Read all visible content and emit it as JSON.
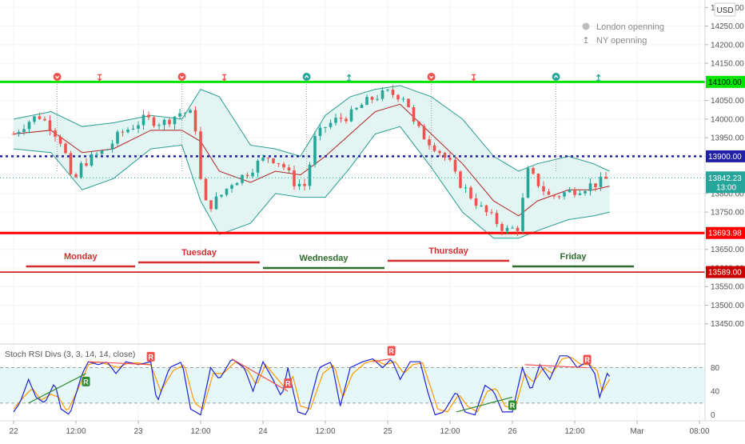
{
  "header": {
    "currency": "USD"
  },
  "legend": {
    "items": [
      {
        "icon": "london-open-icon",
        "label": "London openning"
      },
      {
        "icon": "ny-open-icon",
        "label": "NY openning"
      }
    ]
  },
  "colors": {
    "resistance": "#00e600",
    "support": "#ff0000",
    "lower_support": "#cc0000",
    "mid_level": "#1f1fa8",
    "band": "#2a9d8f",
    "band_fill": "#e3f5f3",
    "basis": "#b22222",
    "candle_up": "#26a69a",
    "candle_down": "#ef5350",
    "stoch_k": "#1e22d8",
    "stoch_d": "#ff9800",
    "div_bear": "#ef5350",
    "div_bull": "#2e8b2e",
    "price_label": "#26a69a",
    "countdown_label": "#26a69a"
  },
  "price_axis": {
    "min": 13400,
    "max": 14320,
    "ticks": [
      "14300.00",
      "14250.00",
      "14200.00",
      "14150.00",
      "14100.00",
      "14050.00",
      "14000.00",
      "13950.00",
      "13900.00",
      "13850.00",
      "13800.00",
      "13750.00",
      "13700.00",
      "13650.00",
      "13600.00",
      "13550.00",
      "13500.00",
      "13450.00"
    ]
  },
  "x_axis": {
    "ticks": [
      "22",
      "12:00",
      "23",
      "12:00",
      "24",
      "12:00",
      "25",
      "12:00",
      "26",
      "12:00",
      "Mar",
      "08:00"
    ]
  },
  "levels": [
    {
      "price": 14100,
      "label": "14100.00",
      "kind": "resistance"
    },
    {
      "price": 13900,
      "label": "13900.00",
      "kind": "mid"
    },
    {
      "price": 13693.98,
      "label": "13693.98",
      "kind": "support"
    },
    {
      "price": 13589,
      "label": "13589.00",
      "kind": "lower"
    }
  ],
  "current_price": {
    "price": 13842.23,
    "label": "13842.23",
    "countdown": "13:00"
  },
  "days": [
    {
      "name": "Monday",
      "color": "#d32f2f",
      "start": 0.1,
      "end": 1.0
    },
    {
      "name": "Tuesday",
      "color": "#d32f2f",
      "start": 1.0,
      "end": 2.0
    },
    {
      "name": "Wednesday",
      "color": "#2e6b2e",
      "start": 2.0,
      "end": 3.0
    },
    {
      "name": "Thursday",
      "color": "#d32f2f",
      "start": 3.0,
      "end": 4.0
    },
    {
      "name": "Friday",
      "color": "#2e6b2e",
      "start": 4.0,
      "end": 5.0
    }
  ],
  "session_markers": [
    {
      "t": 0.35,
      "kind": "london"
    },
    {
      "t": 0.69,
      "kind": "ny"
    },
    {
      "t": 1.35,
      "kind": "london"
    },
    {
      "t": 1.69,
      "kind": "ny"
    },
    {
      "t": 2.35,
      "kind": "london"
    },
    {
      "t": 2.69,
      "kind": "ny"
    },
    {
      "t": 3.35,
      "kind": "london"
    },
    {
      "t": 3.69,
      "kind": "ny"
    },
    {
      "t": 4.35,
      "kind": "london"
    },
    {
      "t": 4.69,
      "kind": "ny"
    }
  ],
  "indicator": {
    "title": "Stoch RSI Divs (3, 3, 14, 14, close)",
    "ticks": [
      "80",
      "40",
      "0"
    ],
    "min": -10,
    "max": 120,
    "band_upper": 80,
    "band_lower": 20,
    "divergence_label": "R"
  },
  "chart_data": [
    {
      "type": "candlestick",
      "time_unit": "days from Feb 22 (Mon) 00:00; 12:00 = 0.5",
      "close_anchors": [
        [
          0.0,
          13960
        ],
        [
          0.1,
          13990
        ],
        [
          0.2,
          14010
        ],
        [
          0.3,
          13980
        ],
        [
          0.4,
          13930
        ],
        [
          0.47,
          13820
        ],
        [
          0.55,
          13880
        ],
        [
          0.65,
          13900
        ],
        [
          0.75,
          13920
        ],
        [
          0.85,
          13960
        ],
        [
          0.95,
          13980
        ],
        [
          1.05,
          14000
        ],
        [
          1.2,
          13990
        ],
        [
          1.35,
          14020
        ],
        [
          1.45,
          14010
        ],
        [
          1.49,
          13850
        ],
        [
          1.55,
          13760
        ],
        [
          1.65,
          13790
        ],
        [
          1.75,
          13830
        ],
        [
          1.85,
          13850
        ],
        [
          1.95,
          13880
        ],
        [
          2.05,
          13900
        ],
        [
          2.15,
          13880
        ],
        [
          2.25,
          13830
        ],
        [
          2.35,
          13820
        ],
        [
          2.4,
          13940
        ],
        [
          2.5,
          13980
        ],
        [
          2.6,
          14000
        ],
        [
          2.7,
          14010
        ],
        [
          2.8,
          14040
        ],
        [
          2.9,
          14060
        ],
        [
          3.0,
          14070
        ],
        [
          3.15,
          14060
        ],
        [
          3.2,
          13990
        ],
        [
          3.3,
          13950
        ],
        [
          3.4,
          13920
        ],
        [
          3.5,
          13880
        ],
        [
          3.55,
          13840
        ],
        [
          3.65,
          13800
        ],
        [
          3.75,
          13760
        ],
        [
          3.85,
          13730
        ],
        [
          3.95,
          13700
        ],
        [
          4.05,
          13710
        ],
        [
          4.12,
          13860
        ],
        [
          4.2,
          13830
        ],
        [
          4.3,
          13790
        ],
        [
          4.4,
          13800
        ],
        [
          4.5,
          13810
        ],
        [
          4.6,
          13820
        ],
        [
          4.7,
          13830
        ],
        [
          4.78,
          13842
        ]
      ],
      "bollinger": [
        {
          "t": 0.0,
          "upper": 14000,
          "mid": 13960,
          "lower": 13920
        },
        {
          "t": 0.3,
          "upper": 14020,
          "mid": 13970,
          "lower": 13910
        },
        {
          "t": 0.55,
          "upper": 13980,
          "mid": 13910,
          "lower": 13810
        },
        {
          "t": 0.8,
          "upper": 13990,
          "mid": 13920,
          "lower": 13840
        },
        {
          "t": 1.1,
          "upper": 14010,
          "mid": 13970,
          "lower": 13920
        },
        {
          "t": 1.35,
          "upper": 14000,
          "mid": 13970,
          "lower": 13930
        },
        {
          "t": 1.5,
          "upper": 14080,
          "mid": 13940,
          "lower": 13780
        },
        {
          "t": 1.65,
          "upper": 14060,
          "mid": 13860,
          "lower": 13690
        },
        {
          "t": 1.9,
          "upper": 13930,
          "mid": 13830,
          "lower": 13720
        },
        {
          "t": 2.1,
          "upper": 13920,
          "mid": 13860,
          "lower": 13800
        },
        {
          "t": 2.3,
          "upper": 13900,
          "mid": 13850,
          "lower": 13790
        },
        {
          "t": 2.5,
          "upper": 14010,
          "mid": 13900,
          "lower": 13790
        },
        {
          "t": 2.7,
          "upper": 14060,
          "mid": 13960,
          "lower": 13870
        },
        {
          "t": 2.9,
          "upper": 14080,
          "mid": 14020,
          "lower": 13960
        },
        {
          "t": 3.1,
          "upper": 14090,
          "mid": 14040,
          "lower": 13980
        },
        {
          "t": 3.35,
          "upper": 14060,
          "mid": 13960,
          "lower": 13870
        },
        {
          "t": 3.6,
          "upper": 14000,
          "mid": 13880,
          "lower": 13750
        },
        {
          "t": 3.85,
          "upper": 13900,
          "mid": 13780,
          "lower": 13680
        },
        {
          "t": 4.05,
          "upper": 13860,
          "mid": 13740,
          "lower": 13680
        },
        {
          "t": 4.2,
          "upper": 13880,
          "mid": 13780,
          "lower": 13700
        },
        {
          "t": 4.45,
          "upper": 13900,
          "mid": 13810,
          "lower": 13730
        },
        {
          "t": 4.65,
          "upper": 13880,
          "mid": 13810,
          "lower": 13740
        },
        {
          "t": 4.78,
          "upper": 13860,
          "mid": 13820,
          "lower": 13750
        }
      ]
    },
    {
      "type": "line",
      "name": "Stoch RSI Divs (3, 3, 14, 14, close)",
      "k_anchors": [
        [
          0.0,
          5
        ],
        [
          0.05,
          20
        ],
        [
          0.12,
          60
        ],
        [
          0.18,
          30
        ],
        [
          0.25,
          20
        ],
        [
          0.33,
          55
        ],
        [
          0.38,
          10
        ],
        [
          0.45,
          0
        ],
        [
          0.55,
          70
        ],
        [
          0.6,
          90
        ],
        [
          0.68,
          85
        ],
        [
          0.75,
          90
        ],
        [
          0.82,
          70
        ],
        [
          0.9,
          90
        ],
        [
          1.0,
          85
        ],
        [
          1.1,
          90
        ],
        [
          1.15,
          20
        ],
        [
          1.25,
          80
        ],
        [
          1.35,
          90
        ],
        [
          1.42,
          10
        ],
        [
          1.5,
          0
        ],
        [
          1.58,
          80
        ],
        [
          1.65,
          60
        ],
        [
          1.75,
          95
        ],
        [
          1.85,
          80
        ],
        [
          1.92,
          40
        ],
        [
          2.0,
          90
        ],
        [
          2.08,
          60
        ],
        [
          2.15,
          30
        ],
        [
          2.2,
          80
        ],
        [
          2.28,
          5
        ],
        [
          2.35,
          0
        ],
        [
          2.45,
          80
        ],
        [
          2.55,
          90
        ],
        [
          2.62,
          15
        ],
        [
          2.7,
          80
        ],
        [
          2.8,
          90
        ],
        [
          2.88,
          95
        ],
        [
          2.96,
          80
        ],
        [
          3.03,
          95
        ],
        [
          3.1,
          60
        ],
        [
          3.18,
          90
        ],
        [
          3.26,
          90
        ],
        [
          3.32,
          40
        ],
        [
          3.38,
          0
        ],
        [
          3.45,
          5
        ],
        [
          3.55,
          40
        ],
        [
          3.62,
          5
        ],
        [
          3.7,
          0
        ],
        [
          3.78,
          50
        ],
        [
          3.85,
          40
        ],
        [
          3.92,
          5
        ],
        [
          4.0,
          5
        ],
        [
          4.08,
          80
        ],
        [
          4.15,
          40
        ],
        [
          4.22,
          85
        ],
        [
          4.3,
          60
        ],
        [
          4.38,
          100
        ],
        [
          4.45,
          100
        ],
        [
          4.52,
          80
        ],
        [
          4.6,
          90
        ],
        [
          4.66,
          70
        ],
        [
          4.7,
          30
        ],
        [
          4.76,
          70
        ],
        [
          4.78,
          65
        ]
      ],
      "d_anchors": [
        [
          0.0,
          10
        ],
        [
          0.08,
          30
        ],
        [
          0.15,
          45
        ],
        [
          0.22,
          25
        ],
        [
          0.3,
          35
        ],
        [
          0.36,
          30
        ],
        [
          0.43,
          5
        ],
        [
          0.52,
          45
        ],
        [
          0.6,
          85
        ],
        [
          0.68,
          90
        ],
        [
          0.76,
          85
        ],
        [
          0.84,
          80
        ],
        [
          0.92,
          88
        ],
        [
          1.0,
          88
        ],
        [
          1.1,
          85
        ],
        [
          1.18,
          40
        ],
        [
          1.28,
          75
        ],
        [
          1.37,
          85
        ],
        [
          1.45,
          20
        ],
        [
          1.52,
          10
        ],
        [
          1.6,
          70
        ],
        [
          1.68,
          70
        ],
        [
          1.78,
          90
        ],
        [
          1.88,
          75
        ],
        [
          1.95,
          50
        ],
        [
          2.02,
          85
        ],
        [
          2.1,
          65
        ],
        [
          2.18,
          45
        ],
        [
          2.24,
          65
        ],
        [
          2.3,
          15
        ],
        [
          2.38,
          10
        ],
        [
          2.48,
          70
        ],
        [
          2.57,
          85
        ],
        [
          2.64,
          30
        ],
        [
          2.72,
          70
        ],
        [
          2.82,
          88
        ],
        [
          2.9,
          93
        ],
        [
          2.98,
          85
        ],
        [
          3.06,
          90
        ],
        [
          3.13,
          70
        ],
        [
          3.2,
          85
        ],
        [
          3.28,
          88
        ],
        [
          3.34,
          50
        ],
        [
          3.4,
          10
        ],
        [
          3.48,
          5
        ],
        [
          3.57,
          35
        ],
        [
          3.64,
          15
        ],
        [
          3.72,
          5
        ],
        [
          3.8,
          40
        ],
        [
          3.87,
          45
        ],
        [
          3.94,
          15
        ],
        [
          4.02,
          10
        ],
        [
          4.1,
          70
        ],
        [
          4.17,
          55
        ],
        [
          4.25,
          80
        ],
        [
          4.32,
          70
        ],
        [
          4.4,
          95
        ],
        [
          4.47,
          98
        ],
        [
          4.55,
          85
        ],
        [
          4.62,
          85
        ],
        [
          4.68,
          75
        ],
        [
          4.72,
          40
        ],
        [
          4.78,
          60
        ]
      ],
      "divergences": [
        {
          "kind": "bull",
          "from": [
            0.12,
            20
          ],
          "to": [
            0.58,
            70
          ],
          "label_at": "to"
        },
        {
          "kind": "bear",
          "from": [
            0.6,
            90
          ],
          "to": [
            1.1,
            85
          ],
          "label_at": "to"
        },
        {
          "kind": "bear",
          "from": [
            1.75,
            95
          ],
          "to": [
            2.2,
            40
          ],
          "label_at": "to"
        },
        {
          "kind": "bear",
          "from": [
            2.88,
            90
          ],
          "to": [
            3.03,
            95
          ],
          "label_at": "to"
        },
        {
          "kind": "bull",
          "from": [
            3.55,
            5
          ],
          "to": [
            4.0,
            30
          ],
          "label_at": "to"
        },
        {
          "kind": "bear",
          "from": [
            4.1,
            85
          ],
          "to": [
            4.6,
            80
          ],
          "label_at": "to"
        }
      ]
    }
  ]
}
